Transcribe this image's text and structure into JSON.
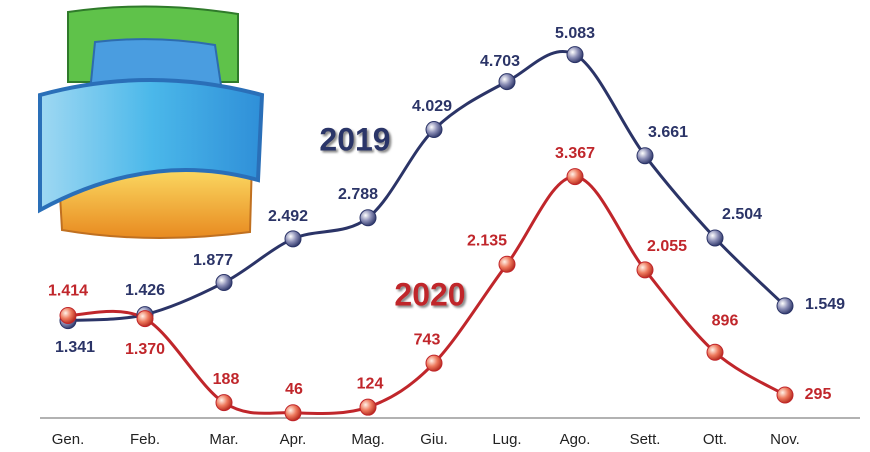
{
  "chart_data": {
    "type": "line",
    "categories": [
      "Gen.",
      "Feb.",
      "Mar.",
      "Apr.",
      "Mag.",
      "Giu.",
      "Lug.",
      "Ago.",
      "Sett.",
      "Ott.",
      "Nov."
    ],
    "series": [
      {
        "name": "2019",
        "color": "#2b3467",
        "marker_color": "#8a8db5",
        "values": [
          1341,
          1426,
          1877,
          2492,
          2788,
          4029,
          4703,
          5083,
          3661,
          2504,
          1549
        ],
        "value_labels": [
          "1.341",
          "1.426",
          "1.877",
          "2.492",
          "2.788",
          "4.029",
          "4.703",
          "5.083",
          "3.661",
          "2.504",
          "1.549"
        ]
      },
      {
        "name": "2020",
        "color": "#c0262b",
        "marker_color": "#ee7a5e",
        "values": [
          1414,
          1370,
          188,
          46,
          124,
          743,
          2135,
          3367,
          2055,
          896,
          295
        ],
        "value_labels": [
          "1.414",
          "1.370",
          "188",
          "46",
          "124",
          "743",
          "2.135",
          "3.367",
          "2.055",
          "896",
          "295"
        ]
      }
    ]
  }
}
